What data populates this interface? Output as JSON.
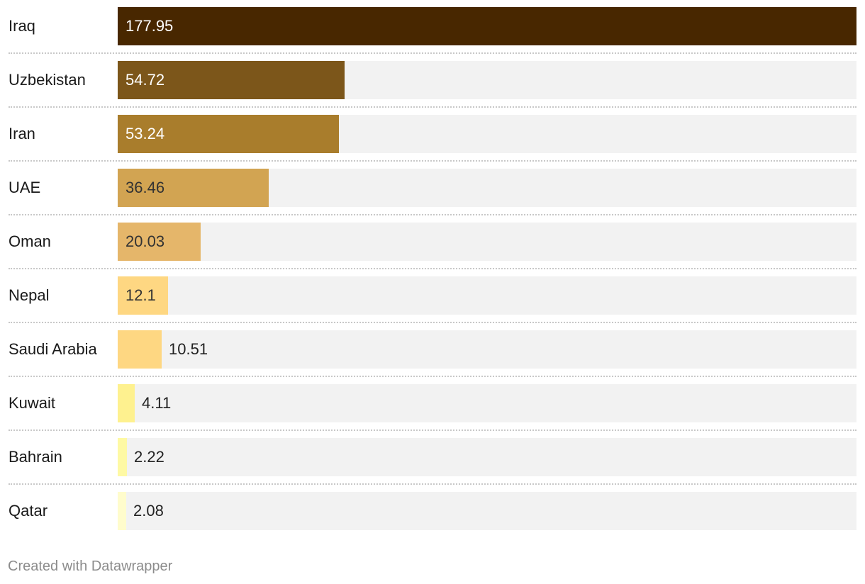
{
  "chart_data": {
    "type": "bar",
    "orientation": "horizontal",
    "categories": [
      "Iraq",
      "Uzbekistan",
      "Iran",
      "UAE",
      "Oman",
      "Nepal",
      "Saudi Arabia",
      "Kuwait",
      "Bahrain",
      "Qatar"
    ],
    "values": [
      177.95,
      54.72,
      53.24,
      36.46,
      20.03,
      12.1,
      10.51,
      4.11,
      2.22,
      2.08
    ],
    "value_labels": [
      "177.95",
      "54.72",
      "53.24",
      "36.46",
      "20.03",
      "12.1",
      "10.51",
      "4.11",
      "2.22",
      "2.08"
    ],
    "colors": [
      "#482700",
      "#7c561a",
      "#a97d2c",
      "#d2a452",
      "#e5b66a",
      "#fed782",
      "#fed782",
      "#fef18f",
      "#fef9a4",
      "#fffccc"
    ],
    "label_text_colors": [
      "#ffffff",
      "#ffffff",
      "#ffffff",
      "#333333",
      "#333333",
      "#333333",
      "#222222",
      "#222222",
      "#222222",
      "#222222"
    ],
    "xlim": [
      0,
      177.95
    ],
    "track_color": "#f2f2f2",
    "title": "",
    "xlabel": "",
    "ylabel": "",
    "grid": false,
    "legend": "none"
  },
  "footer": {
    "credit": "Created with Datawrapper"
  }
}
